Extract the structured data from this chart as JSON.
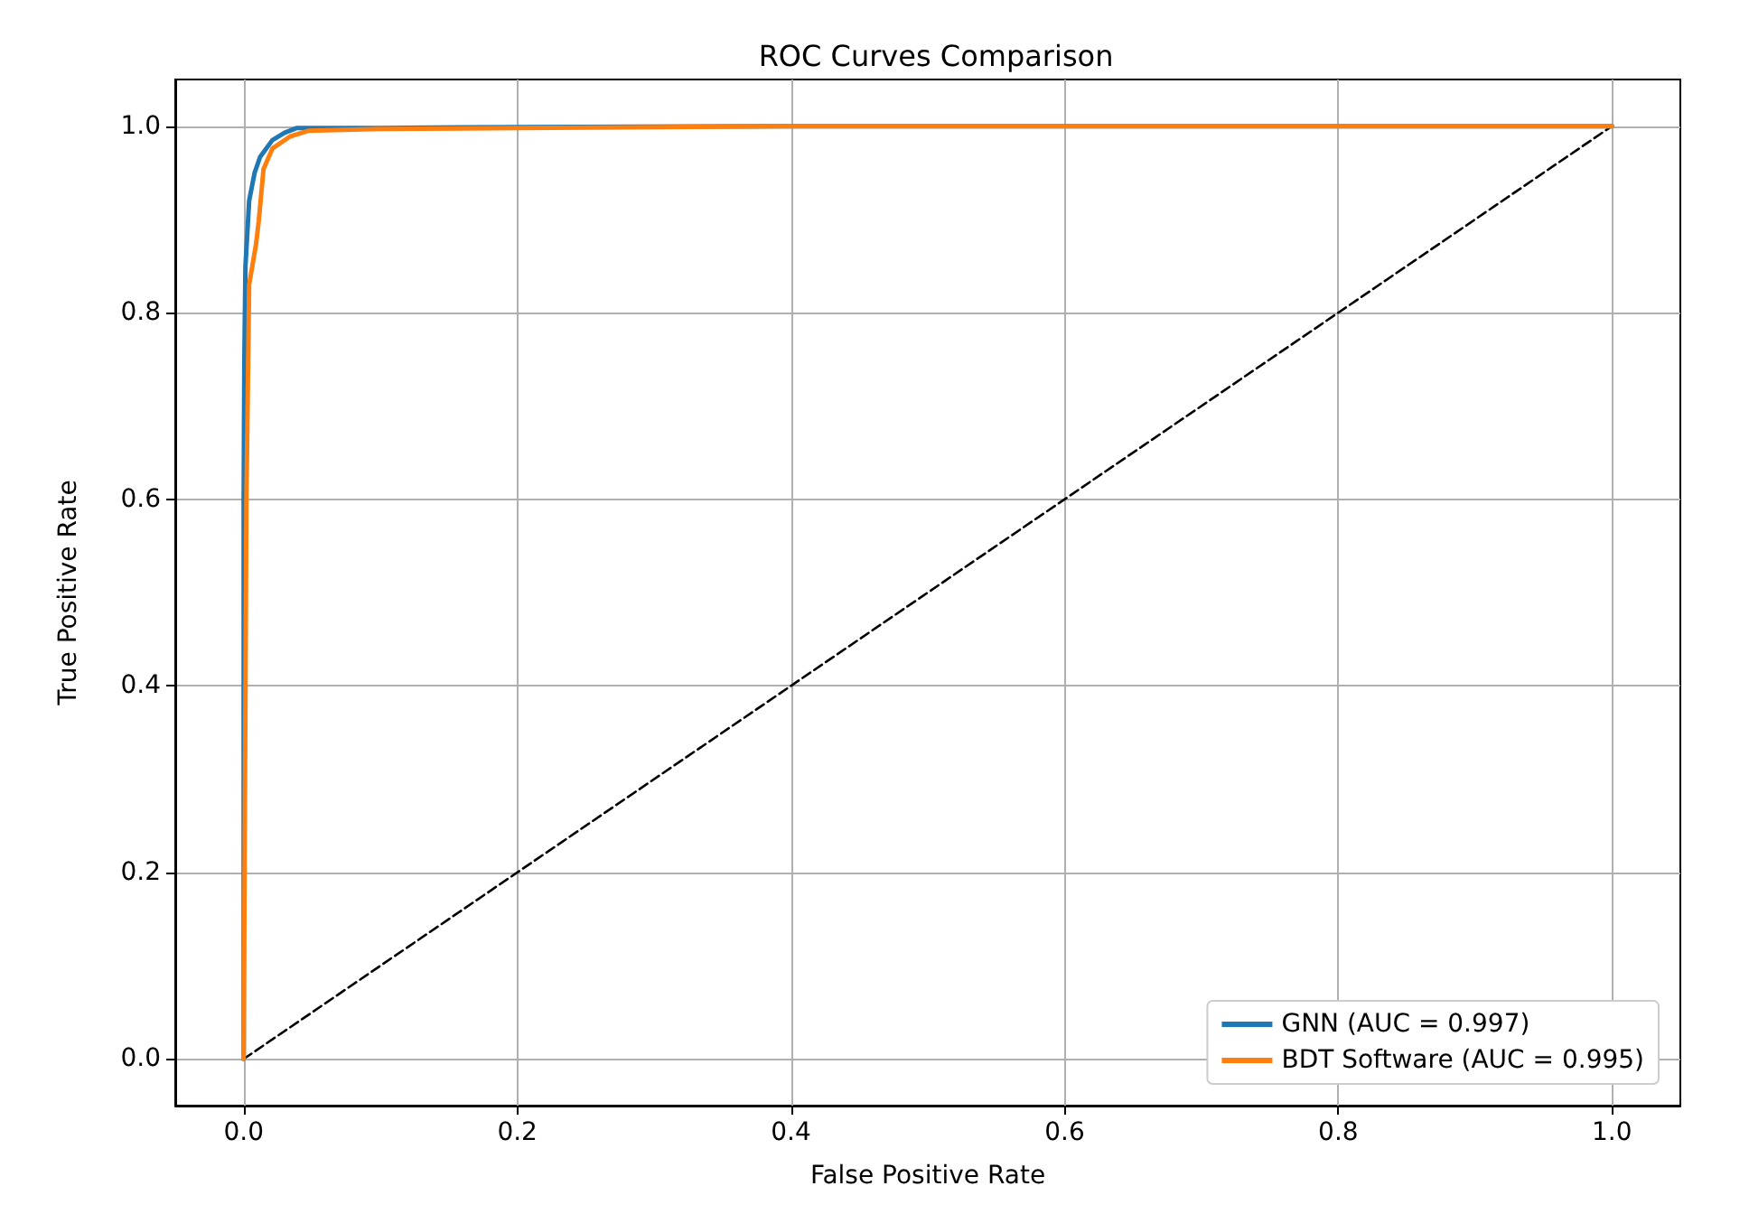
{
  "chart_data": {
    "type": "line",
    "title": "ROC Curves Comparison",
    "xlabel": "False Positive Rate",
    "ylabel": "True Positive Rate",
    "xlim": [
      -0.05,
      1.05
    ],
    "xticks": [
      {
        "value": 0,
        "label": "0.0"
      },
      0.2,
      0.4,
      0.6,
      0.8,
      {
        "value": 1,
        "label": "1.0"
      }
    ],
    "ylim": [
      -0.05,
      1.05
    ],
    "yticks": [
      {
        "value": 0,
        "label": "0.0"
      },
      0.2,
      0.4,
      0.6,
      0.8,
      {
        "value": 1,
        "label": "1.0"
      }
    ],
    "grid": true,
    "legend": "bottom right",
    "marker": "none",
    "line_style": "solid",
    "series": [
      {
        "name": "GNN (AUC = 0.997)",
        "color": "#1f77b4",
        "x": [
          0,
          0,
          0.0005,
          0.0013,
          0.004,
          0.008,
          0.012,
          0.021,
          0.03,
          0.039,
          0.1,
          0.2,
          0.4,
          1.0
        ],
        "values": [
          0,
          0.6,
          0.75,
          0.85,
          0.92,
          0.95,
          0.967,
          0.985,
          0.993,
          0.998,
          0.998,
          0.999,
          1.0,
          1.0
        ]
      },
      {
        "name": "BDT Software (AUC = 0.995)",
        "color": "#ff7f0e",
        "x": [
          0,
          0.001,
          0.002,
          0.004,
          0.009,
          0.011,
          0.0145,
          0.021,
          0.034,
          0.047,
          0.1,
          0.2,
          0.4,
          1.0
        ],
        "values": [
          0,
          0.3,
          0.6,
          0.83,
          0.873,
          0.898,
          0.954,
          0.976,
          0.989,
          0.995,
          0.997,
          0.998,
          1.0,
          1.0
        ]
      },
      {
        "color": "#000000",
        "line_style": "dashed",
        "x": [
          0,
          1
        ],
        "values": [
          0,
          1
        ]
      }
    ]
  }
}
